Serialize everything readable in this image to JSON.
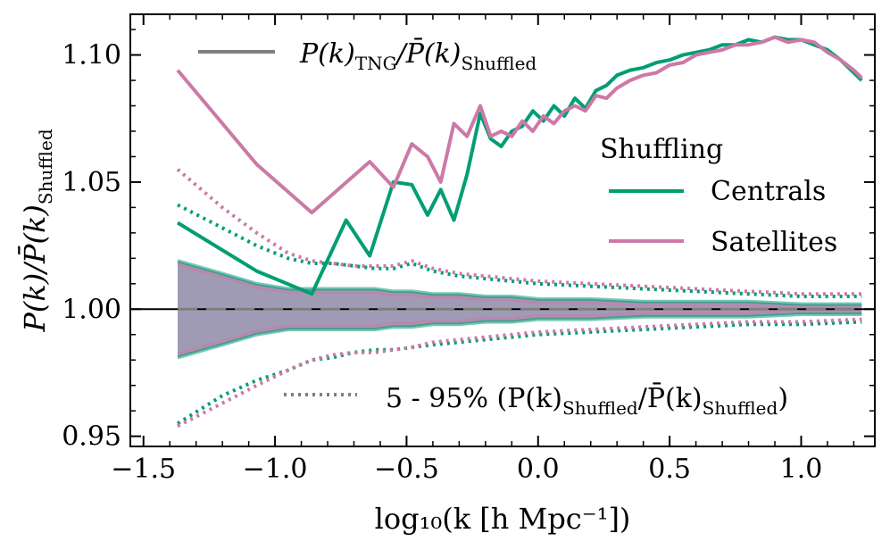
{
  "chart_data": {
    "type": "line",
    "xlabel": "log₁₀(k [h Mpc⁻¹])",
    "ylabel_main": "P(k)/P̄(k)",
    "ylabel_sub": "Shuffled",
    "xlim": [
      -1.55,
      1.28
    ],
    "ylim": [
      0.946,
      1.116
    ],
    "xticks": [
      -1.5,
      -1.0,
      -0.5,
      0.0,
      0.5,
      1.0
    ],
    "xtick_labels": [
      "−1.5",
      "−1.0",
      "−0.5",
      "0.0",
      "0.5",
      "1.0"
    ],
    "yticks": [
      0.95,
      1.0,
      1.05,
      1.1
    ],
    "ytick_labels": [
      "0.95",
      "1.00",
      "1.05",
      "1.10"
    ],
    "reference_line": 1.0,
    "colors": {
      "centrals": "#009e73",
      "satellites": "#cc79a7",
      "neutral": "#7f7f7f",
      "band": "#8f8aa8"
    },
    "series": [
      {
        "name": "Centrals",
        "color": "#009e73",
        "x": [
          -1.37,
          -1.07,
          -0.86,
          -0.73,
          -0.64,
          -0.55,
          -0.48,
          -0.42,
          -0.37,
          -0.32,
          -0.27,
          -0.22,
          -0.18,
          -0.14,
          -0.1,
          -0.06,
          -0.02,
          0.02,
          0.06,
          0.1,
          0.14,
          0.18,
          0.22,
          0.26,
          0.3,
          0.35,
          0.4,
          0.45,
          0.5,
          0.55,
          0.6,
          0.65,
          0.7,
          0.75,
          0.8,
          0.85,
          0.9,
          0.95,
          1.0,
          1.05,
          1.1,
          1.15,
          1.2,
          1.23
        ],
        "values": [
          1.034,
          1.015,
          1.006,
          1.035,
          1.021,
          1.05,
          1.049,
          1.037,
          1.047,
          1.035,
          1.053,
          1.077,
          1.067,
          1.064,
          1.07,
          1.072,
          1.078,
          1.074,
          1.08,
          1.076,
          1.083,
          1.079,
          1.086,
          1.088,
          1.092,
          1.094,
          1.095,
          1.097,
          1.098,
          1.1,
          1.101,
          1.102,
          1.104,
          1.104,
          1.106,
          1.105,
          1.107,
          1.106,
          1.106,
          1.104,
          1.102,
          1.098,
          1.093,
          1.09
        ]
      },
      {
        "name": "Satellites",
        "color": "#cc79a7",
        "x": [
          -1.37,
          -1.07,
          -0.86,
          -0.64,
          -0.55,
          -0.48,
          -0.42,
          -0.37,
          -0.32,
          -0.27,
          -0.22,
          -0.18,
          -0.14,
          -0.1,
          -0.06,
          -0.02,
          0.02,
          0.06,
          0.1,
          0.14,
          0.18,
          0.22,
          0.26,
          0.3,
          0.35,
          0.4,
          0.45,
          0.5,
          0.55,
          0.6,
          0.65,
          0.7,
          0.75,
          0.8,
          0.85,
          0.9,
          0.95,
          1.0,
          1.05,
          1.1,
          1.15,
          1.2,
          1.23
        ],
        "values": [
          1.094,
          1.057,
          1.038,
          1.058,
          1.048,
          1.065,
          1.06,
          1.05,
          1.073,
          1.068,
          1.08,
          1.068,
          1.07,
          1.068,
          1.074,
          1.07,
          1.076,
          1.073,
          1.078,
          1.08,
          1.078,
          1.084,
          1.083,
          1.087,
          1.09,
          1.092,
          1.093,
          1.096,
          1.097,
          1.1,
          1.101,
          1.102,
          1.104,
          1.104,
          1.105,
          1.107,
          1.105,
          1.106,
          1.105,
          1.101,
          1.098,
          1.094,
          1.091
        ]
      }
    ],
    "percentile_lines": {
      "x": [
        -1.37,
        -1.2,
        -1.07,
        -0.95,
        -0.86,
        -0.78,
        -0.7,
        -0.62,
        -0.55,
        -0.48,
        -0.4,
        -0.3,
        -0.2,
        -0.1,
        0.0,
        0.2,
        0.4,
        0.6,
        0.8,
        1.0,
        1.23
      ],
      "centrals_upper": [
        1.041,
        1.032,
        1.025,
        1.02,
        1.018,
        1.018,
        1.017,
        1.016,
        1.016,
        1.018,
        1.015,
        1.013,
        1.012,
        1.011,
        1.01,
        1.009,
        1.008,
        1.007,
        1.006,
        1.005,
        1.005
      ],
      "centrals_lower": [
        0.955,
        0.966,
        0.972,
        0.976,
        0.98,
        0.981,
        0.983,
        0.984,
        0.984,
        0.985,
        0.986,
        0.987,
        0.988,
        0.989,
        0.99,
        0.991,
        0.992,
        0.993,
        0.994,
        0.994,
        0.995
      ],
      "satellites_upper": [
        1.055,
        1.04,
        1.03,
        1.022,
        1.019,
        1.018,
        1.017,
        1.017,
        1.017,
        1.019,
        1.016,
        1.014,
        1.013,
        1.012,
        1.011,
        1.01,
        1.009,
        1.008,
        1.007,
        1.006,
        1.006
      ],
      "satellites_lower": [
        0.954,
        0.963,
        0.97,
        0.976,
        0.98,
        0.982,
        0.983,
        0.983,
        0.984,
        0.985,
        0.987,
        0.988,
        0.989,
        0.99,
        0.991,
        0.992,
        0.993,
        0.994,
        0.995,
        0.995,
        0.996
      ]
    },
    "band": {
      "x": [
        -1.37,
        -1.2,
        -1.07,
        -0.95,
        -0.86,
        -0.78,
        -0.7,
        -0.62,
        -0.55,
        -0.48,
        -0.4,
        -0.3,
        -0.2,
        -0.1,
        0.0,
        0.2,
        0.4,
        0.6,
        0.8,
        1.0,
        1.23
      ],
      "upper": [
        1.019,
        1.014,
        1.01,
        1.008,
        1.008,
        1.008,
        1.008,
        1.008,
        1.007,
        1.007,
        1.006,
        1.006,
        1.005,
        1.005,
        1.004,
        1.004,
        1.003,
        1.003,
        1.003,
        1.002,
        1.002
      ],
      "lower": [
        0.981,
        0.986,
        0.99,
        0.992,
        0.992,
        0.992,
        0.992,
        0.992,
        0.993,
        0.993,
        0.994,
        0.994,
        0.995,
        0.995,
        0.996,
        0.996,
        0.997,
        0.997,
        0.997,
        0.998,
        0.998
      ]
    },
    "legend_top": {
      "main": "P(k)",
      "sub1": "TNG",
      "mid": "/P̄(k)",
      "sub2": "Shuffled",
      "placement": "top-left"
    },
    "legend_right": {
      "title": "Shuffling",
      "entries": [
        "Centrals",
        "Satellites"
      ],
      "placement": "center-right"
    },
    "legend_bottom": {
      "prefix": "5 - 95% (P(k)",
      "sub1": "Shuffled",
      "mid": "/P̄(k)",
      "sub2": "Shuffled",
      "suffix": ")",
      "placement": "bottom-center"
    }
  }
}
